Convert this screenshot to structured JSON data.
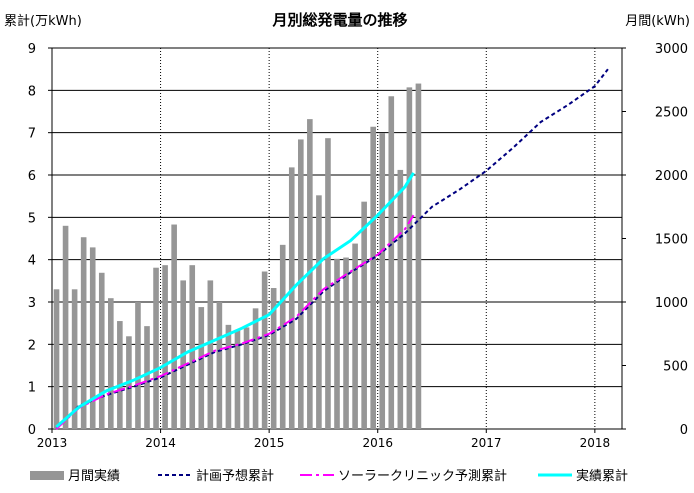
{
  "chart_data": {
    "type": "bar+line",
    "title": "月別総発電量の推移",
    "ylabel_left": "累計(万kWh)",
    "ylabel_right": "月間(kWh)",
    "ylim_left": [
      0,
      9
    ],
    "ylim_right": [
      0,
      3000
    ],
    "yticks_left": [
      "0",
      "1",
      "2",
      "3",
      "4",
      "5",
      "6",
      "7",
      "8",
      "9"
    ],
    "yticks_right": [
      "0",
      "500",
      "1000",
      "1500",
      "2000",
      "2500",
      "3000"
    ],
    "xlim": [
      2013.0,
      2018.25
    ],
    "x_ticks": [
      {
        "x": 2013,
        "label": "2013"
      },
      {
        "x": 2014,
        "label": "2014"
      },
      {
        "x": 2015,
        "label": "2015"
      },
      {
        "x": 2016,
        "label": "2016"
      },
      {
        "x": 2017,
        "label": "2017"
      },
      {
        "x": 2018,
        "label": "2018"
      }
    ],
    "grid": true,
    "legend_position": "bottom",
    "monthly": {
      "name": "月間実績",
      "color": "#969696",
      "start_year": 2013,
      "values": [
        1100,
        1600,
        1100,
        1510,
        1430,
        1230,
        1030,
        850,
        730,
        1000,
        810,
        1270,
        1290,
        1610,
        1170,
        1290,
        960,
        1170,
        1000,
        820,
        780,
        800,
        950,
        1240,
        1110,
        1450,
        2060,
        2280,
        2440,
        1840,
        2290,
        1340,
        1350,
        1460,
        1790,
        2380,
        2330,
        2620,
        2040,
        2690,
        2720
      ]
    },
    "series": [
      {
        "name": "計画予想累計",
        "color": "#000080",
        "dash": "4,3",
        "x": [
          2013.04,
          2013.25,
          2013.5,
          2013.75,
          2014.0,
          2014.25,
          2014.5,
          2014.75,
          2015.0,
          2015.25,
          2015.5,
          2015.75,
          2016.0,
          2016.25,
          2016.5,
          2016.75,
          2017.0,
          2017.25,
          2017.5,
          2017.75,
          2018.0,
          2018.12
        ],
        "values": [
          0.0,
          0.55,
          0.8,
          1.0,
          1.22,
          1.52,
          1.82,
          2.0,
          2.22,
          2.6,
          3.25,
          3.7,
          4.1,
          4.62,
          5.25,
          5.65,
          6.1,
          6.65,
          7.25,
          7.65,
          8.1,
          8.5
        ]
      },
      {
        "name": "ソーラークリニック予測累計",
        "color": "#ff00ff",
        "dash": "12,4,3,4",
        "x": [
          2013.04,
          2013.25,
          2013.5,
          2013.75,
          2014.0,
          2014.25,
          2014.5,
          2014.75,
          2015.0,
          2015.25,
          2015.5,
          2015.75,
          2016.0,
          2016.25,
          2016.33
        ],
        "values": [
          0.0,
          0.5,
          0.82,
          1.02,
          1.25,
          1.55,
          1.85,
          2.02,
          2.25,
          2.65,
          3.3,
          3.72,
          4.12,
          4.72,
          5.05
        ]
      },
      {
        "name": "実績累計",
        "color": "#00ffff",
        "dash": "",
        "x": [
          2013.04,
          2013.25,
          2013.5,
          2013.75,
          2014.0,
          2014.25,
          2014.5,
          2014.75,
          2015.0,
          2015.25,
          2015.5,
          2015.75,
          2016.0,
          2016.25,
          2016.33
        ],
        "values": [
          0.05,
          0.52,
          0.9,
          1.15,
          1.45,
          1.82,
          2.1,
          2.38,
          2.7,
          3.4,
          4.02,
          4.45,
          5.05,
          5.72,
          6.05
        ]
      }
    ]
  }
}
